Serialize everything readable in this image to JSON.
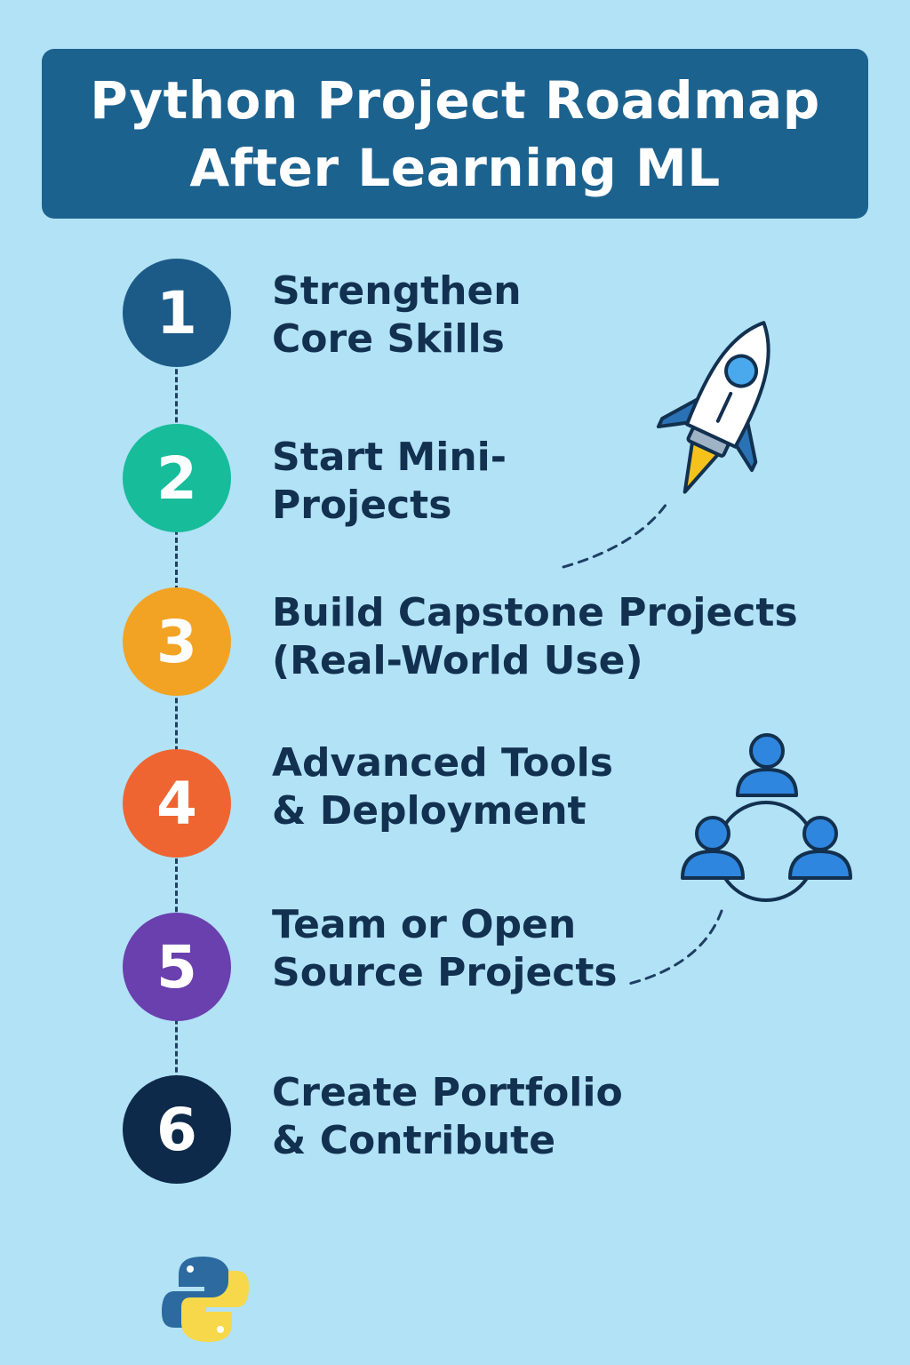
{
  "title": {
    "line1": "Python Project Roadmap",
    "line2": "After Learning ML"
  },
  "steps": [
    {
      "number": "1",
      "line1": "Strengthen",
      "line2": "Core Skills",
      "color": "#1c5b87"
    },
    {
      "number": "2",
      "line1": "Start Mini-",
      "line2": "Projects",
      "color": "#17bc9a"
    },
    {
      "number": "3",
      "line1": "Build Capstone Projects",
      "line2": "(Real-World Use)",
      "color": "#f2a323"
    },
    {
      "number": "4",
      "line1": "Advanced Tools",
      "line2": "& Deployment",
      "color": "#ef6532"
    },
    {
      "number": "5",
      "line1": "Team or Open",
      "line2": "Source Projects",
      "color": "#6a3fae"
    },
    {
      "number": "6",
      "line1": "Create Portfolio",
      "line2": "& Contribute",
      "color": "#0e2a4a"
    }
  ],
  "icons": {
    "rocket": "rocket-icon",
    "team": "team-network-icon",
    "python": "python-logo-icon"
  },
  "colors": {
    "background": "#b1e2f6",
    "banner": "#1c628f",
    "text": "#12304f"
  }
}
